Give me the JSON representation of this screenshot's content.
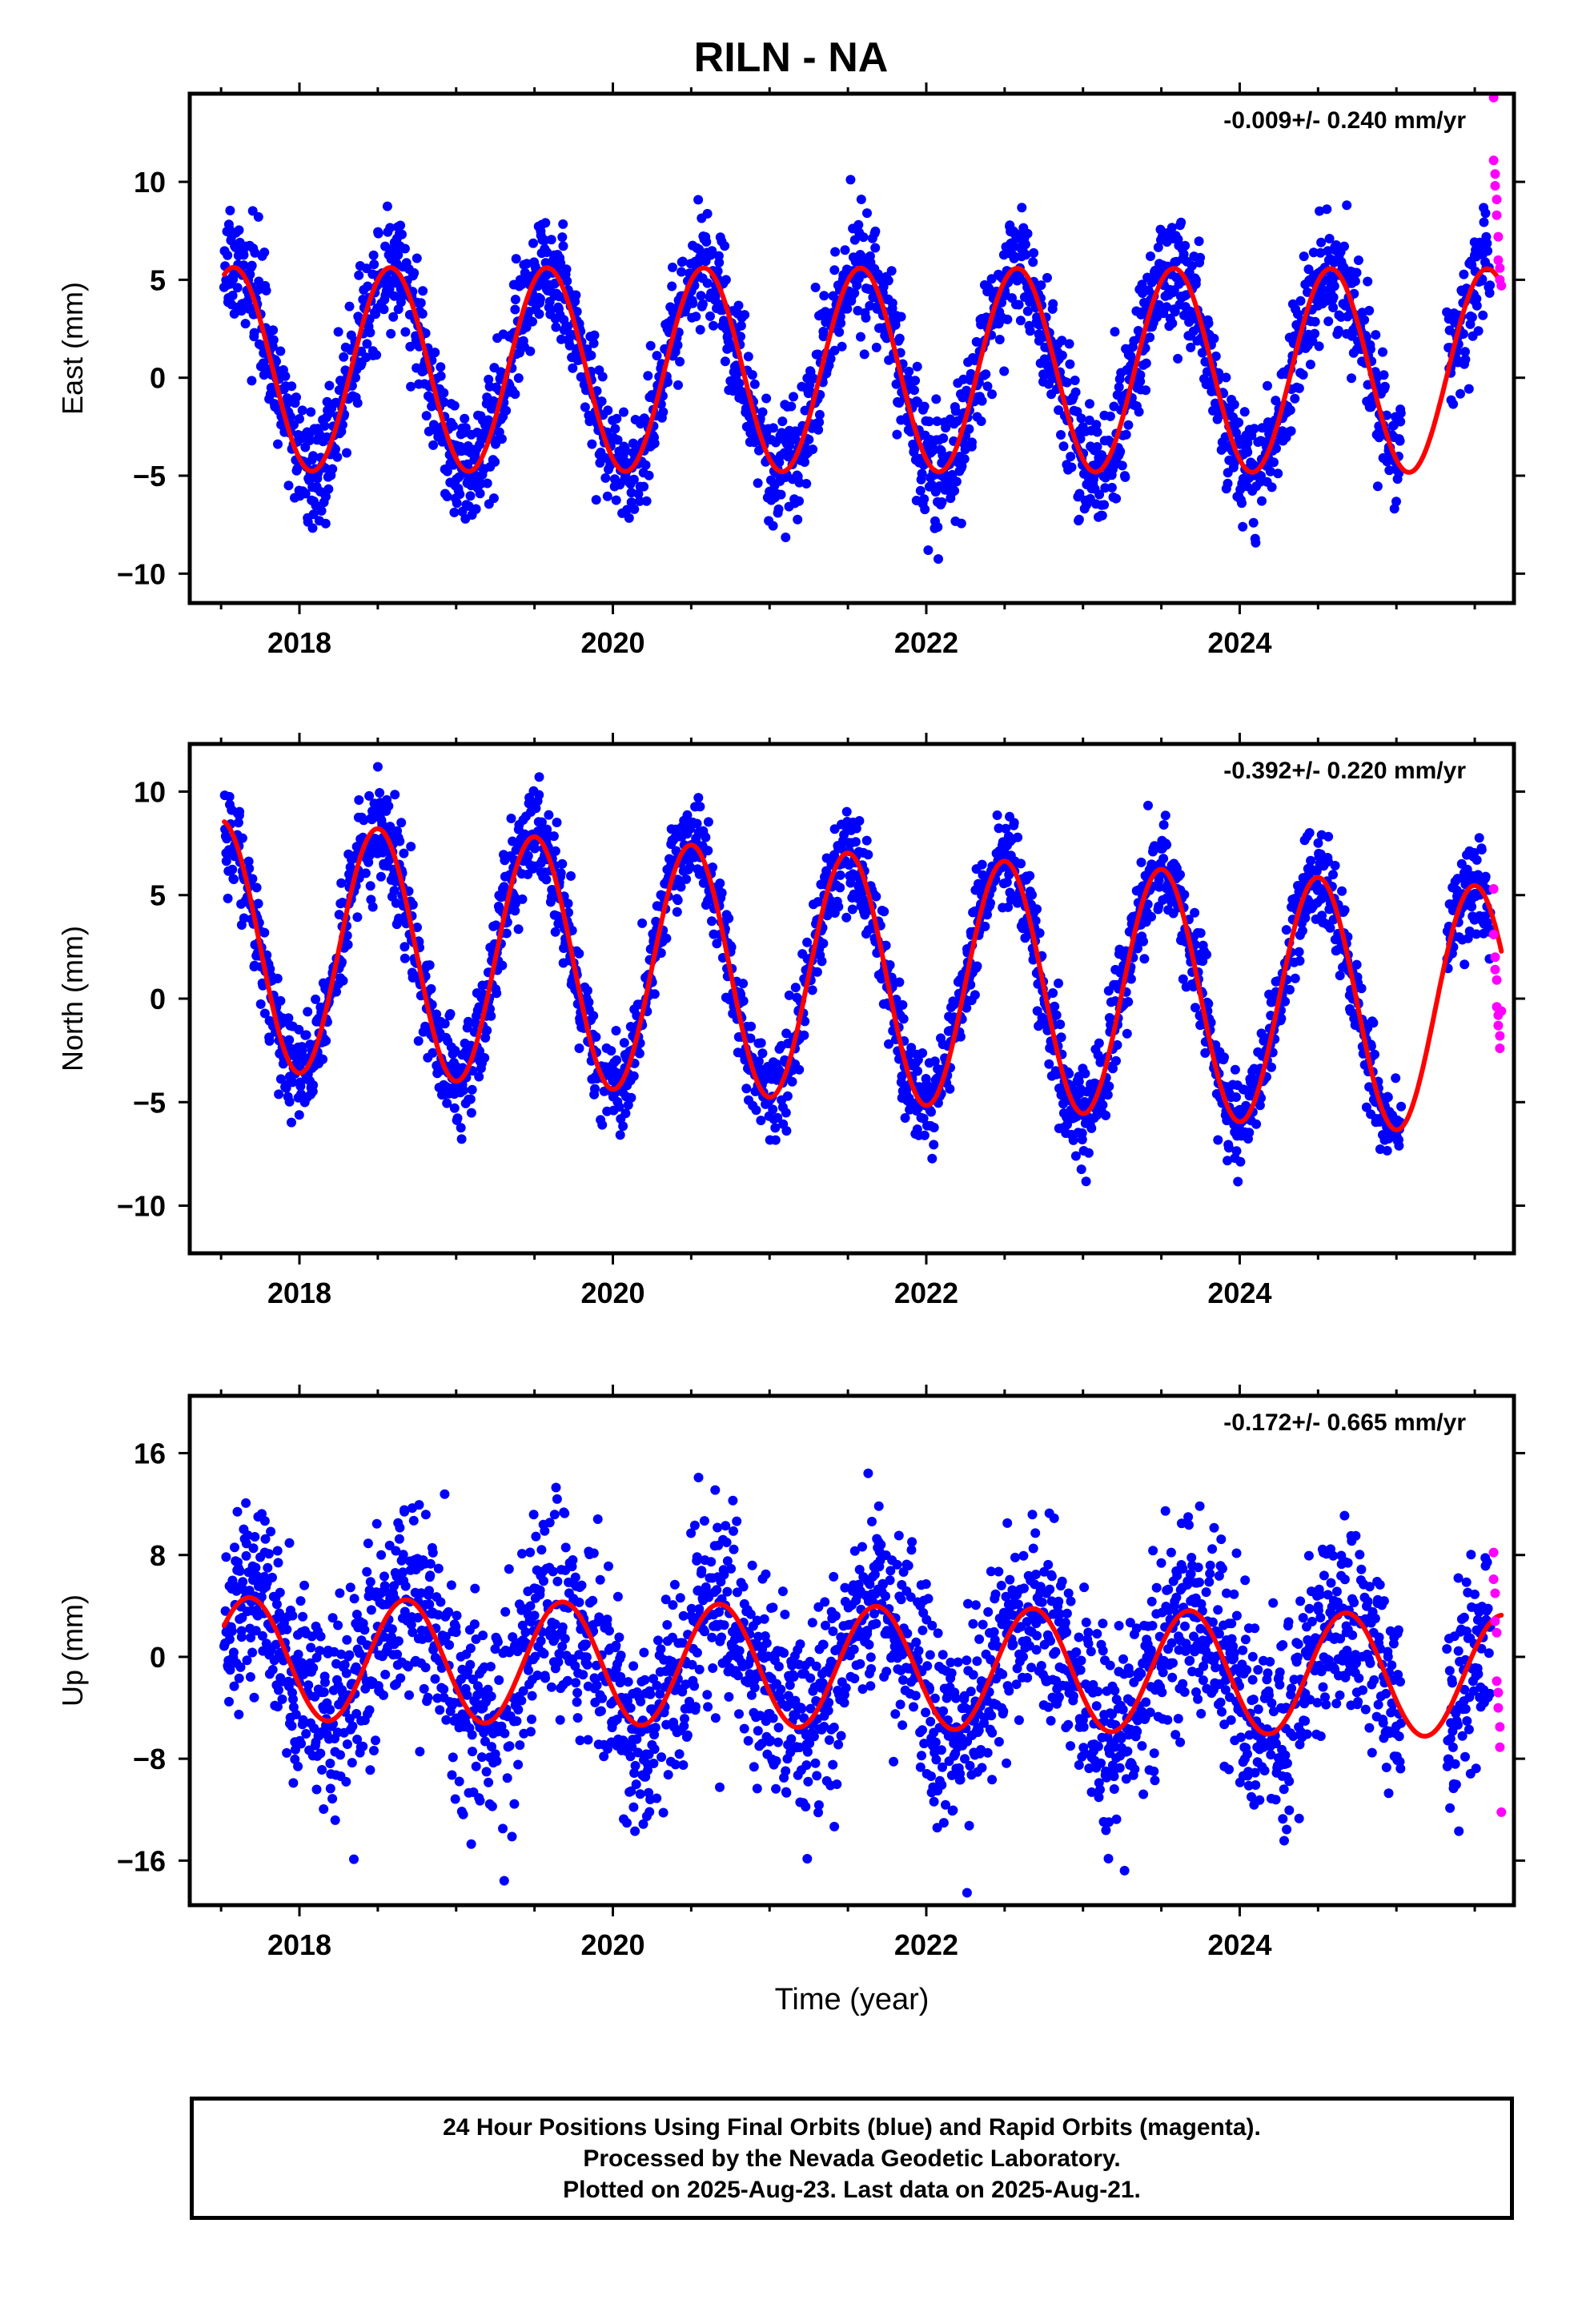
{
  "title": "RILN - NA",
  "colors": {
    "final_orbits": "#0000ff",
    "rapid_orbits": "#ff00ff",
    "model_fit": "#ff0000",
    "frame": "#000000"
  },
  "footer": {
    "line1": "24 Hour Positions Using Final Orbits (blue) and Rapid Orbits (magenta).",
    "line2": "Processed by the Nevada Geodetic Laboratory.",
    "line3": "Plotted on 2025-Aug-23. Last data on 2025-Aug-21."
  },
  "chart_data": [
    {
      "type": "scatter",
      "ylabel": "East (mm)",
      "xlabel": "",
      "annotation": "-0.009+/- 0.240 mm/yr",
      "xlim": [
        2017.3,
        2025.75
      ],
      "ylim": [
        -11.5,
        14.5
      ],
      "xticks": [
        2018,
        2020,
        2022,
        2024
      ],
      "yticks": [
        -10,
        -5,
        0,
        5,
        10
      ],
      "grid": false,
      "series": [
        {
          "role": "final-orbits-blue",
          "model": {
            "offset": 0.4,
            "amplitude": 5.2,
            "peak_phase": 0.58,
            "trend": -0.009,
            "ref_year": 2021.5
          },
          "scatter_sd": 1.5,
          "x_range": [
            2017.52,
            2025.6
          ],
          "gap": [
            2025.03,
            2025.32
          ]
        },
        {
          "role": "rapid-orbits-magenta",
          "x": [
            2025.62,
            2025.62,
            2025.63,
            2025.63,
            2025.64,
            2025.64,
            2025.65,
            2025.65,
            2025.66,
            2025.66,
            2025.67
          ],
          "y": [
            14.3,
            11.1,
            10.4,
            9.8,
            9.1,
            8.3,
            7.2,
            6.0,
            5.6,
            5.0,
            4.7
          ]
        },
        {
          "role": "model-fit-red",
          "x_range": [
            2017.52,
            2025.67
          ]
        }
      ]
    },
    {
      "type": "scatter",
      "ylabel": "North (mm)",
      "xlabel": "",
      "annotation": "-0.392+/- 0.220 mm/yr",
      "xlim": [
        2017.3,
        2025.75
      ],
      "ylim": [
        -12.3,
        12.3
      ],
      "xticks": [
        2018,
        2020,
        2022,
        2024
      ],
      "yticks": [
        -10,
        -5,
        0,
        5,
        10
      ],
      "grid": false,
      "series": [
        {
          "role": "final-orbits-blue",
          "model": {
            "offset": 2.6,
            "amplitude": 6.0,
            "peak_phase": 0.5,
            "trend": -0.392,
            "ref_year": 2017.5
          },
          "scatter_sd": 1.2,
          "x_range": [
            2017.52,
            2025.6
          ],
          "gap": [
            2025.03,
            2025.32
          ]
        },
        {
          "role": "rapid-orbits-magenta",
          "x": [
            2025.62,
            2025.62,
            2025.63,
            2025.63,
            2025.64,
            2025.64,
            2025.65,
            2025.65,
            2025.66,
            2025.66,
            2025.67
          ],
          "y": [
            5.3,
            3.1,
            2.0,
            1.4,
            0.9,
            -0.4,
            -0.8,
            -1.3,
            -1.8,
            -2.4,
            -0.6
          ]
        },
        {
          "role": "model-fit-red",
          "x_range": [
            2017.52,
            2025.67
          ]
        }
      ]
    },
    {
      "type": "scatter",
      "ylabel": "Up (mm)",
      "xlabel": "Time (year)",
      "annotation": "-0.172+/- 0.665 mm/yr",
      "xlim": [
        2017.3,
        2025.75
      ],
      "ylim": [
        -19.5,
        20.5
      ],
      "xticks": [
        2018,
        2020,
        2022,
        2024
      ],
      "yticks": [
        -16,
        -8,
        0,
        8,
        16
      ],
      "grid": false,
      "series": [
        {
          "role": "final-orbits-blue",
          "model": {
            "offset": -0.8,
            "amplitude": 4.8,
            "peak_phase": 0.68,
            "trend": -0.172,
            "ref_year": 2021.5
          },
          "scatter_sd": 4.0,
          "x_range": [
            2017.52,
            2025.6
          ],
          "gap": [
            2025.03,
            2025.32
          ]
        },
        {
          "role": "rapid-orbits-magenta",
          "x": [
            2025.62,
            2025.62,
            2025.63,
            2025.63,
            2025.64,
            2025.64,
            2025.65,
            2025.65,
            2025.66,
            2025.66,
            2025.67
          ],
          "y": [
            8.2,
            6.1,
            5.0,
            2.8,
            1.9,
            -1.9,
            -2.8,
            -4.0,
            -5.5,
            -7.1,
            -12.2
          ]
        },
        {
          "role": "model-fit-red",
          "x_range": [
            2017.52,
            2025.67
          ]
        }
      ]
    }
  ]
}
